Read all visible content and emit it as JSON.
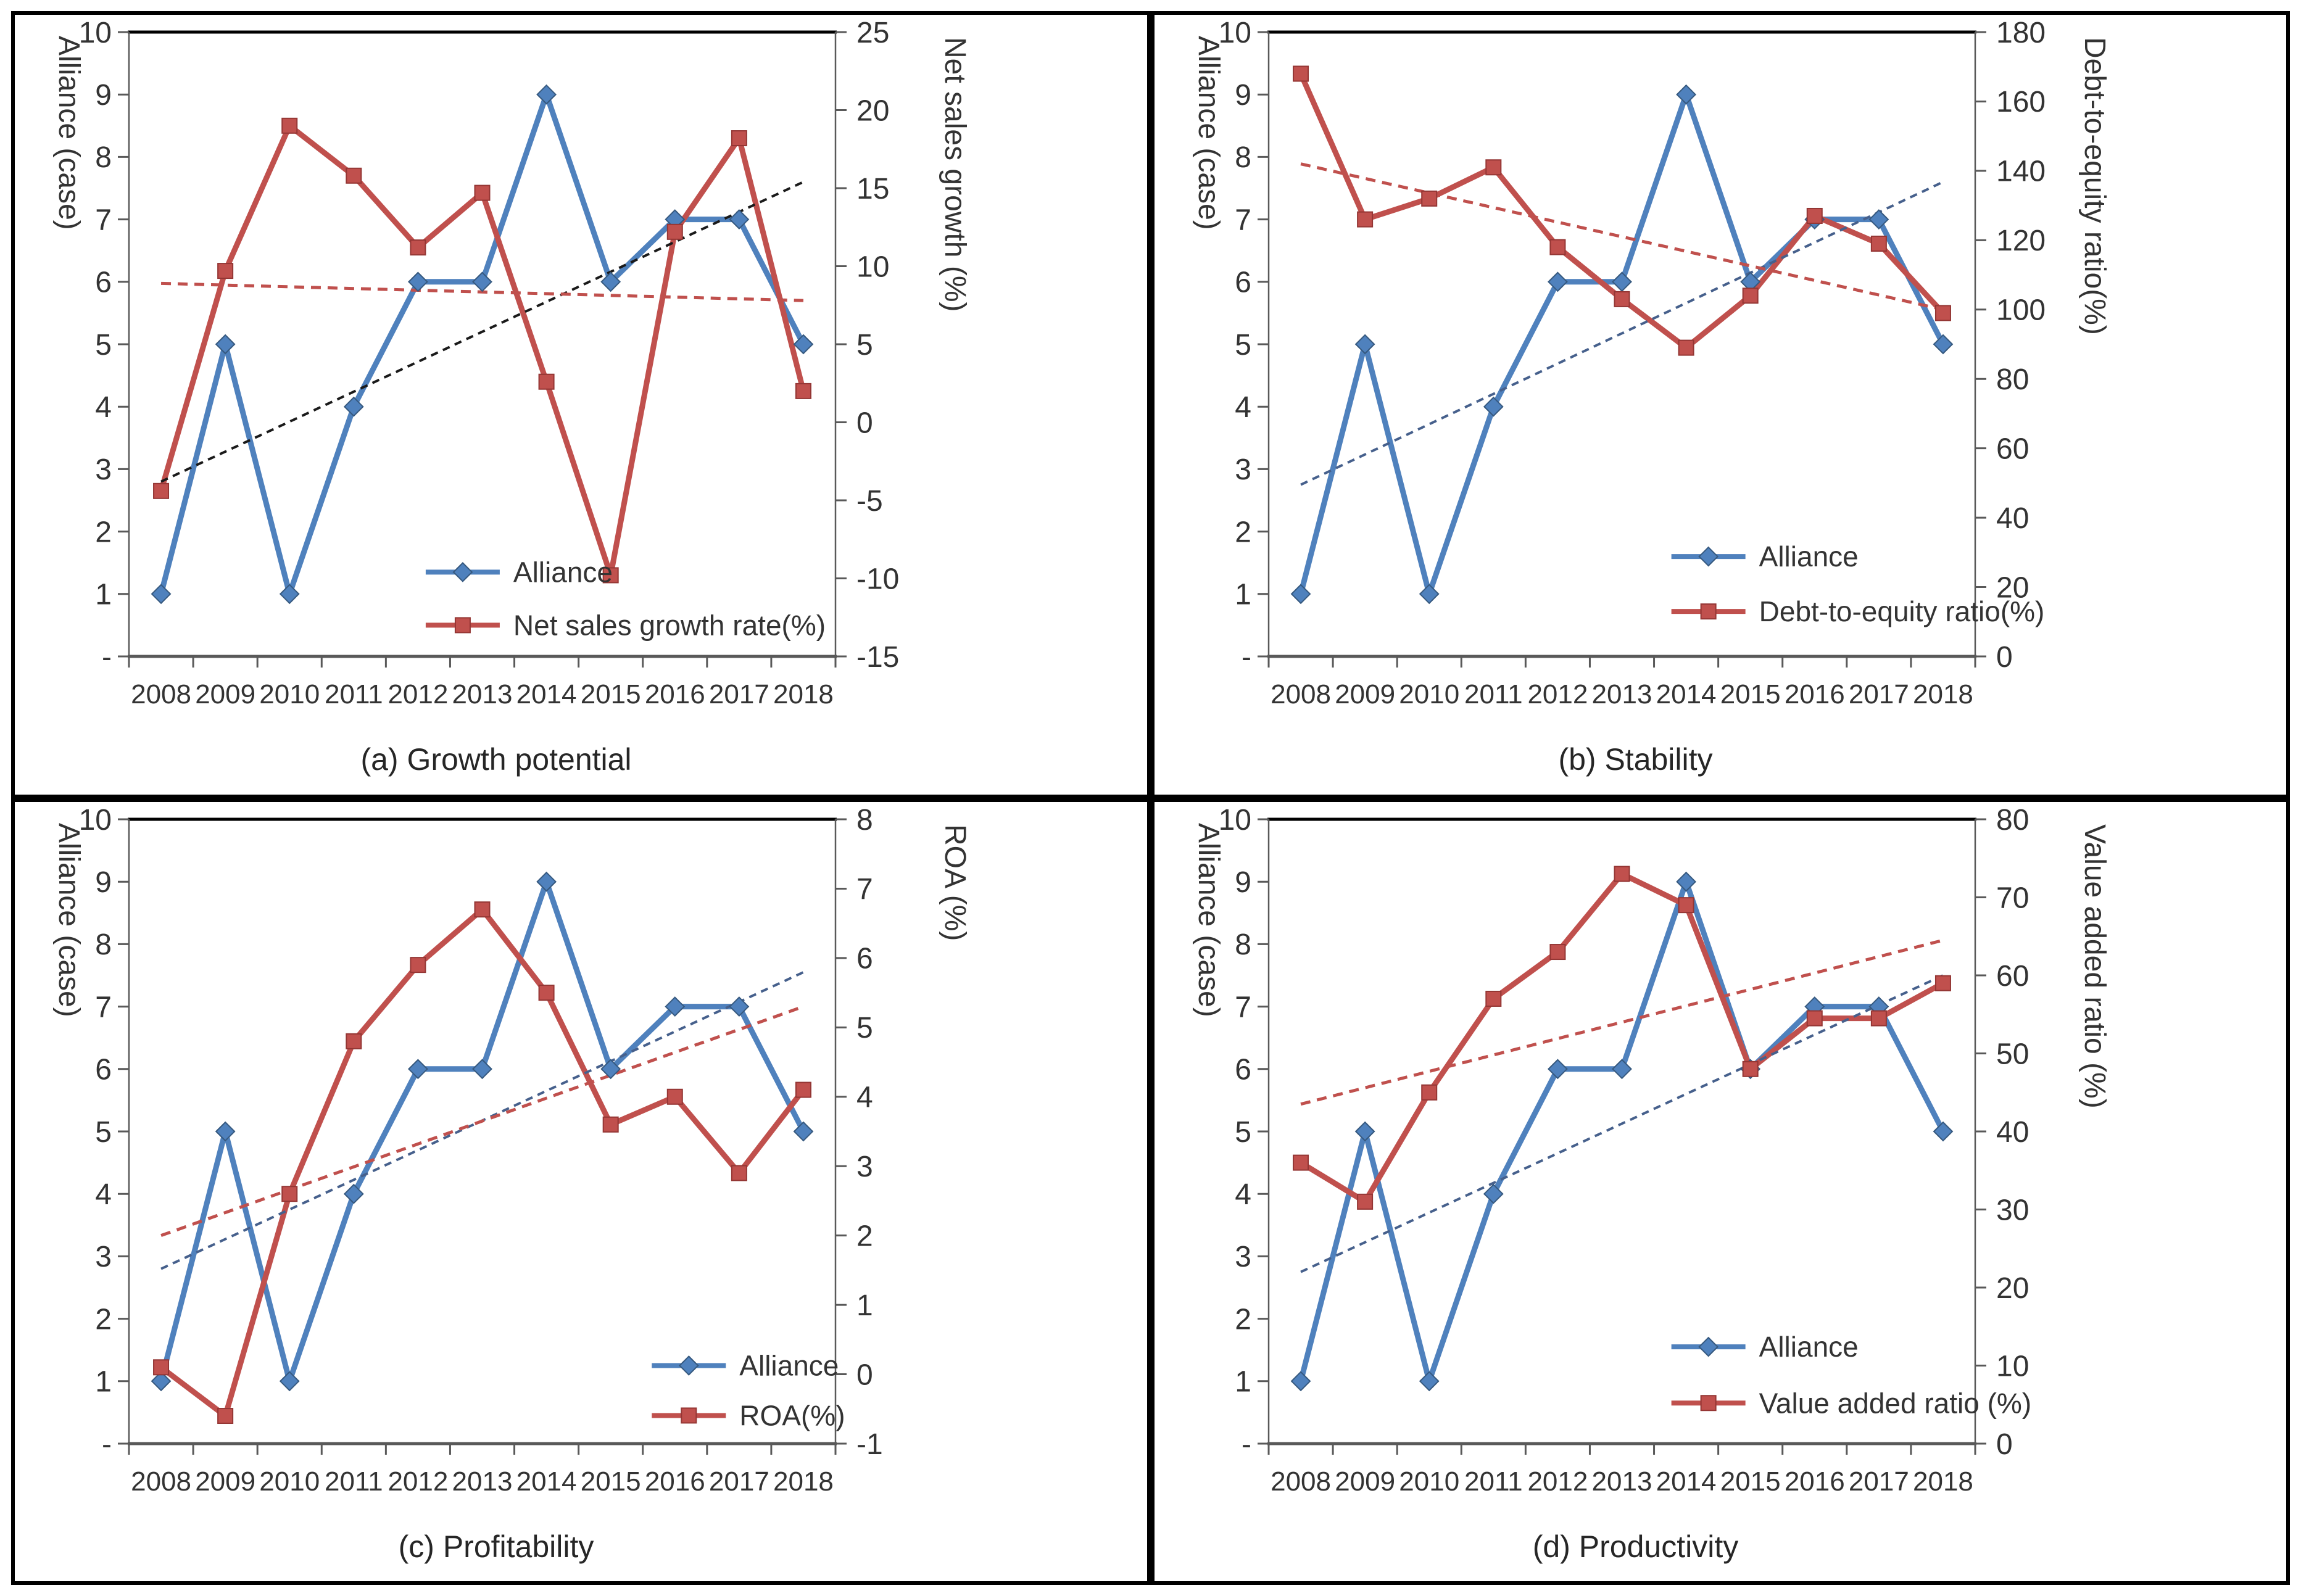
{
  "style": {
    "background": "#ffffff",
    "panel_border_color": "#000000",
    "plot_top_border_color": "#000000",
    "axis_line_color": "#595959",
    "tick_color": "#595959",
    "tick_label_color": "#333333",
    "caption_color": "#262626",
    "legend_text_color": "#333333",
    "alliance_color": "#4F81BD",
    "metric_color": "#C0504D"
  },
  "chart_data": [
    {
      "type": "line",
      "caption": "(a) Growth potential",
      "x": [
        2008,
        2009,
        2010,
        2011,
        2012,
        2013,
        2014,
        2015,
        2016,
        2017,
        2018
      ],
      "left_axis": {
        "label": "Alliance (case)",
        "min": 0,
        "max": 10,
        "step": 1,
        "zero_tick_label": "-"
      },
      "right_axis": {
        "label": "Net sales growth (%)",
        "min": -15,
        "max": 25,
        "step": 5
      },
      "grid": false,
      "series": [
        {
          "name": "Alliance",
          "axis": "left",
          "color": "#4F81BD",
          "marker": "diamond",
          "marker_stroke": "#36597F",
          "values": [
            1,
            5,
            1,
            4,
            6,
            6,
            9,
            6,
            7,
            7,
            5
          ]
        },
        {
          "name": "Net sales growth rate(%)",
          "axis": "right",
          "color": "#C0504D",
          "marker": "square",
          "marker_stroke": "#943634",
          "values": [
            -4.4,
            9.7,
            19.0,
            15.8,
            11.2,
            14.7,
            2.6,
            -9.8,
            12.2,
            18.2,
            2.0
          ]
        }
      ],
      "trendlines": [
        {
          "series": "Alliance",
          "axis": "left",
          "start": 2.8,
          "end": 7.6,
          "color": "#1a1a1a",
          "dash": "12 9",
          "width": 4
        },
        {
          "series": "Net sales growth rate(%)",
          "axis": "right",
          "start": 8.9,
          "end": 7.8,
          "color": "#C0504D",
          "dash": "16 11",
          "width": 5
        }
      ],
      "legend": {
        "position": "inside-lower-right",
        "x_frac": 0.42,
        "row_fracs": [
          0.865,
          0.95
        ],
        "entries": [
          "Alliance",
          "Net sales growth rate(%)"
        ]
      }
    },
    {
      "type": "line",
      "caption": "(b) Stability",
      "x": [
        2008,
        2009,
        2010,
        2011,
        2012,
        2013,
        2014,
        2015,
        2016,
        2017,
        2018
      ],
      "left_axis": {
        "label": "Alliance (case)",
        "min": 0,
        "max": 10,
        "step": 1,
        "zero_tick_label": "-"
      },
      "right_axis": {
        "label": "Debt-to-equity ratio(%)",
        "min": 0,
        "max": 180,
        "step": 20
      },
      "grid": false,
      "series": [
        {
          "name": "Alliance",
          "axis": "left",
          "color": "#4F81BD",
          "marker": "diamond",
          "marker_stroke": "#36597F",
          "values": [
            1,
            5,
            1,
            4,
            6,
            6,
            9,
            6,
            7,
            7,
            5
          ]
        },
        {
          "name": "Debt-to-equity ratio(%)",
          "axis": "right",
          "color": "#C0504D",
          "marker": "square",
          "marker_stroke": "#943634",
          "values": [
            168,
            126,
            132,
            141,
            118,
            103,
            89,
            104,
            127,
            119,
            99
          ]
        }
      ],
      "trendlines": [
        {
          "series": "Alliance",
          "axis": "left",
          "start": 2.75,
          "end": 7.6,
          "color": "#46608C",
          "dash": "12 9",
          "width": 4
        },
        {
          "series": "Debt-to-equity ratio(%)",
          "axis": "right",
          "start": 142,
          "end": 100,
          "color": "#C0504D",
          "dash": "16 11",
          "width": 5
        }
      ],
      "legend": {
        "position": "inside-lower-right",
        "x_frac": 0.57,
        "row_fracs": [
          0.84,
          0.928
        ],
        "entries": [
          "Alliance",
          "Debt-to-equity ratio(%)"
        ]
      }
    },
    {
      "type": "line",
      "caption": "(c) Profitability",
      "x": [
        2008,
        2009,
        2010,
        2011,
        2012,
        2013,
        2014,
        2015,
        2016,
        2017,
        2018
      ],
      "left_axis": {
        "label": "Alliance (case)",
        "min": 0,
        "max": 10,
        "step": 1,
        "zero_tick_label": "-"
      },
      "right_axis": {
        "label": "ROA (%)",
        "min": -1,
        "max": 8,
        "step": 1
      },
      "grid": false,
      "series": [
        {
          "name": "Alliance",
          "axis": "left",
          "color": "#4F81BD",
          "marker": "diamond",
          "marker_stroke": "#36597F",
          "values": [
            1,
            5,
            1,
            4,
            6,
            6,
            9,
            6,
            7,
            7,
            5
          ]
        },
        {
          "name": "ROA(%)",
          "axis": "right",
          "color": "#C0504D",
          "marker": "square",
          "marker_stroke": "#943634",
          "values": [
            0.1,
            -0.6,
            2.6,
            4.8,
            5.9,
            6.7,
            5.5,
            3.6,
            4.0,
            2.9,
            4.1
          ]
        }
      ],
      "trendlines": [
        {
          "series": "Alliance",
          "axis": "left",
          "start": 2.8,
          "end": 7.55,
          "color": "#46608C",
          "dash": "12 9",
          "width": 4
        },
        {
          "series": "ROA(%)",
          "axis": "right",
          "start": 2.0,
          "end": 5.3,
          "color": "#C0504D",
          "dash": "16 11",
          "width": 5
        }
      ],
      "legend": {
        "position": "inside-lower-right",
        "x_frac": 0.74,
        "row_fracs": [
          0.875,
          0.955
        ],
        "entries": [
          "Alliance",
          "ROA(%)"
        ]
      }
    },
    {
      "type": "line",
      "caption": "(d) Productivity",
      "x": [
        2008,
        2009,
        2010,
        2011,
        2012,
        2013,
        2014,
        2015,
        2016,
        2017,
        2018
      ],
      "left_axis": {
        "label": "Alliance (case)",
        "min": 0,
        "max": 10,
        "step": 1,
        "zero_tick_label": "-"
      },
      "right_axis": {
        "label": "Value added ratio (%)",
        "min": 0,
        "max": 80,
        "step": 10
      },
      "grid": false,
      "series": [
        {
          "name": "Alliance",
          "axis": "left",
          "color": "#4F81BD",
          "marker": "diamond",
          "marker_stroke": "#36597F",
          "values": [
            1,
            5,
            1,
            4,
            6,
            6,
            9,
            6,
            7,
            7,
            5
          ]
        },
        {
          "name": "Value added ratio (%)",
          "axis": "right",
          "color": "#C0504D",
          "marker": "square",
          "marker_stroke": "#943634",
          "values": [
            36,
            31,
            45,
            57,
            63,
            73,
            69,
            48,
            54.5,
            54.5,
            59
          ]
        }
      ],
      "trendlines": [
        {
          "series": "Alliance",
          "axis": "left",
          "start": 2.75,
          "end": 7.5,
          "color": "#46608C",
          "dash": "12 9",
          "width": 4
        },
        {
          "series": "Value added ratio (%)",
          "axis": "right",
          "start": 43.5,
          "end": 64.5,
          "color": "#C0504D",
          "dash": "16 11",
          "width": 5
        }
      ],
      "legend": {
        "position": "inside-lower-right",
        "x_frac": 0.57,
        "row_fracs": [
          0.845,
          0.935
        ],
        "entries": [
          "Alliance",
          "Value added ratio (%)"
        ]
      }
    }
  ]
}
